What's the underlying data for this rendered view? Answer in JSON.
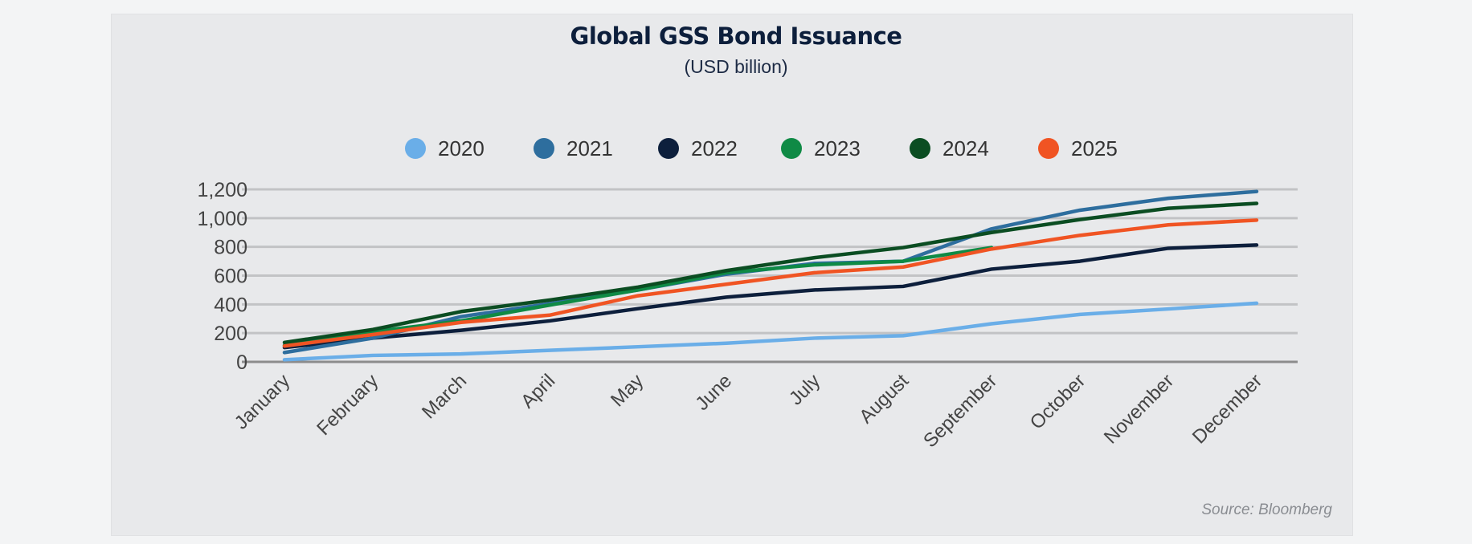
{
  "chart_data": {
    "type": "line",
    "title": "Global GSS Bond Issuance",
    "subtitle": "(USD billion)",
    "source": "Source: Bloomberg",
    "categories": [
      "January",
      "February",
      "March",
      "April",
      "May",
      "June",
      "July",
      "August",
      "September",
      "October",
      "November",
      "December"
    ],
    "ylim": [
      0,
      1200
    ],
    "yticks": [
      0,
      200,
      400,
      600,
      800,
      1000,
      1200
    ],
    "ytick_labels": [
      "0",
      "200",
      "400",
      "600",
      "800",
      "1,000",
      "1,200"
    ],
    "grid": true,
    "legend_position": "top",
    "series": [
      {
        "name": "2020",
        "color": "#6aaee8",
        "values": [
          15,
          45,
          55,
          80,
          105,
          130,
          165,
          182,
          265,
          330,
          368,
          408
        ]
      },
      {
        "name": "2021",
        "color": "#2e6e9e",
        "values": [
          65,
          165,
          315,
          405,
          500,
          610,
          685,
          700,
          925,
          1055,
          1138,
          1185
        ]
      },
      {
        "name": "2022",
        "color": "#0d1f3c",
        "values": [
          100,
          165,
          220,
          285,
          370,
          450,
          500,
          525,
          645,
          700,
          790,
          813
        ]
      },
      {
        "name": "2023",
        "color": "#0f8a45",
        "values": [
          115,
          210,
          285,
          395,
          500,
          620,
          675,
          700,
          795,
          null,
          null,
          null
        ]
      },
      {
        "name": "2024",
        "color": "#0b4d22",
        "values": [
          135,
          225,
          350,
          430,
          520,
          635,
          725,
          795,
          900,
          990,
          1068,
          1102
        ]
      },
      {
        "name": "2025",
        "color": "#f05423",
        "values": [
          110,
          190,
          275,
          325,
          460,
          540,
          620,
          660,
          785,
          880,
          953,
          986
        ]
      }
    ]
  }
}
